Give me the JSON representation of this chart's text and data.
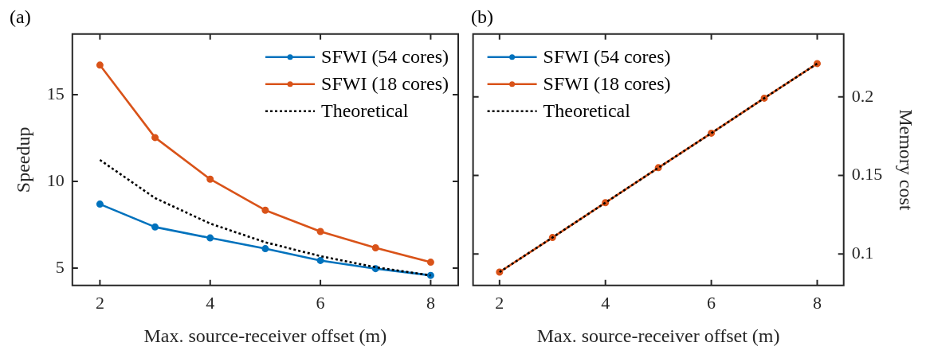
{
  "chart_data": [
    {
      "type": "line",
      "title": "(a)",
      "xlabel": "Max. source-receiver offset (m)",
      "ylabel": "Speedup",
      "x": [
        2,
        3,
        4,
        5,
        6,
        7,
        8
      ],
      "xlim": [
        1.5,
        8.5
      ],
      "xticks": [
        2,
        4,
        6,
        8
      ],
      "ylim": [
        4,
        18.5
      ],
      "yticks": [
        5,
        10,
        15
      ],
      "legend": "top right",
      "marker": "circle",
      "series": [
        {
          "name": "SFWI (54 cores)",
          "color": "#0072bd",
          "values": [
            8.69,
            7.37,
            6.74,
            6.12,
            5.44,
            4.97,
            4.58
          ]
        },
        {
          "name": "SFWI (18 cores)",
          "color": "#d95319",
          "values": [
            16.71,
            12.53,
            10.13,
            8.34,
            7.11,
            6.17,
            5.34
          ]
        },
        {
          "name": "Theoretical",
          "color": "#000000",
          "values": [
            11.24,
            9.04,
            7.57,
            6.49,
            5.69,
            5.05,
            4.58
          ],
          "marker": "none",
          "line_style": "dotted"
        }
      ]
    },
    {
      "type": "line",
      "title": "(b)",
      "xlabel": "Max. source-receiver offset (m)",
      "y2label": "Memory cost",
      "x": [
        2,
        3,
        4,
        5,
        6,
        7,
        8
      ],
      "xlim": [
        1.5,
        8.5
      ],
      "xticks": [
        2,
        4,
        6,
        8
      ],
      "y2lim": [
        0.08,
        0.24
      ],
      "y2ticks": [
        0.1,
        0.15,
        0.2
      ],
      "legend": "top left",
      "marker": "circle",
      "series": [
        {
          "name": "SFWI (54 cores)",
          "color": "#0072bd",
          "axis": "y2",
          "values": [
            null,
            null,
            null,
            null,
            null,
            null,
            null
          ]
        },
        {
          "name": "SFWI (18 cores)",
          "color": "#d95319",
          "axis": "y2",
          "values": [
            0.0885,
            0.1105,
            0.1327,
            0.1549,
            0.1769,
            0.1992,
            0.2212
          ]
        },
        {
          "name": "Theoretical",
          "color": "#000000",
          "axis": "y2",
          "values": [
            0.0885,
            0.1105,
            0.1327,
            0.1549,
            0.1769,
            0.1992,
            0.2212
          ],
          "marker": "none",
          "line_style": "dotted"
        }
      ]
    }
  ]
}
